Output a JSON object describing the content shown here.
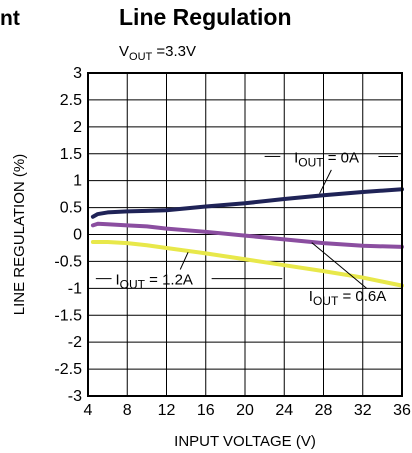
{
  "header": {
    "cut_text": "nt",
    "title": "Line Regulation",
    "condition": "V_OUT = 3.3V"
  },
  "chart_data": {
    "type": "line",
    "title": "Line Regulation",
    "xlabel": "INPUT VOLTAGE (V)",
    "ylabel": "LINE REGULATION (%)",
    "xlim": [
      4,
      36
    ],
    "ylim": [
      -3,
      3
    ],
    "xticks": [
      4,
      8,
      12,
      16,
      20,
      24,
      28,
      32,
      36
    ],
    "yticks": [
      -3,
      -2.5,
      -2,
      -1.5,
      -1,
      -0.5,
      0,
      0.5,
      1,
      1.5,
      2,
      2.5,
      3
    ],
    "grid": true,
    "series": [
      {
        "name": "I_OUT = 0A",
        "color": "#1f2357",
        "x": [
          4.5,
          5,
          6,
          8,
          10,
          12,
          16,
          20,
          24,
          28,
          32,
          36
        ],
        "y": [
          0.33,
          0.38,
          0.41,
          0.43,
          0.44,
          0.45,
          0.52,
          0.58,
          0.66,
          0.73,
          0.79,
          0.84
        ]
      },
      {
        "name": "I_OUT = 0.6A",
        "color": "#8b4ea0",
        "x": [
          4.5,
          5,
          6,
          8,
          10,
          12,
          16,
          20,
          24,
          28,
          32,
          36
        ],
        "y": [
          0.17,
          0.2,
          0.19,
          0.17,
          0.15,
          0.11,
          0.05,
          -0.02,
          -0.09,
          -0.16,
          -0.21,
          -0.23
        ]
      },
      {
        "name": "I_OUT = 1.2A",
        "color": "#e8e84a",
        "x": [
          4.5,
          6,
          8,
          10,
          12,
          16,
          20,
          24,
          28,
          32,
          36
        ],
        "y": [
          -0.14,
          -0.14,
          -0.16,
          -0.2,
          -0.25,
          -0.35,
          -0.46,
          -0.57,
          -0.68,
          -0.8,
          -0.95
        ]
      }
    ],
    "annotations": [
      {
        "label": "I_OUT = 0A",
        "x": 25,
        "y": 1.45
      },
      {
        "label": "I_OUT = 1.2A",
        "x": 6.8,
        "y": -0.82
      },
      {
        "label": "I_OUT = 0.6A",
        "x": 26.5,
        "y": -1.12
      }
    ]
  }
}
